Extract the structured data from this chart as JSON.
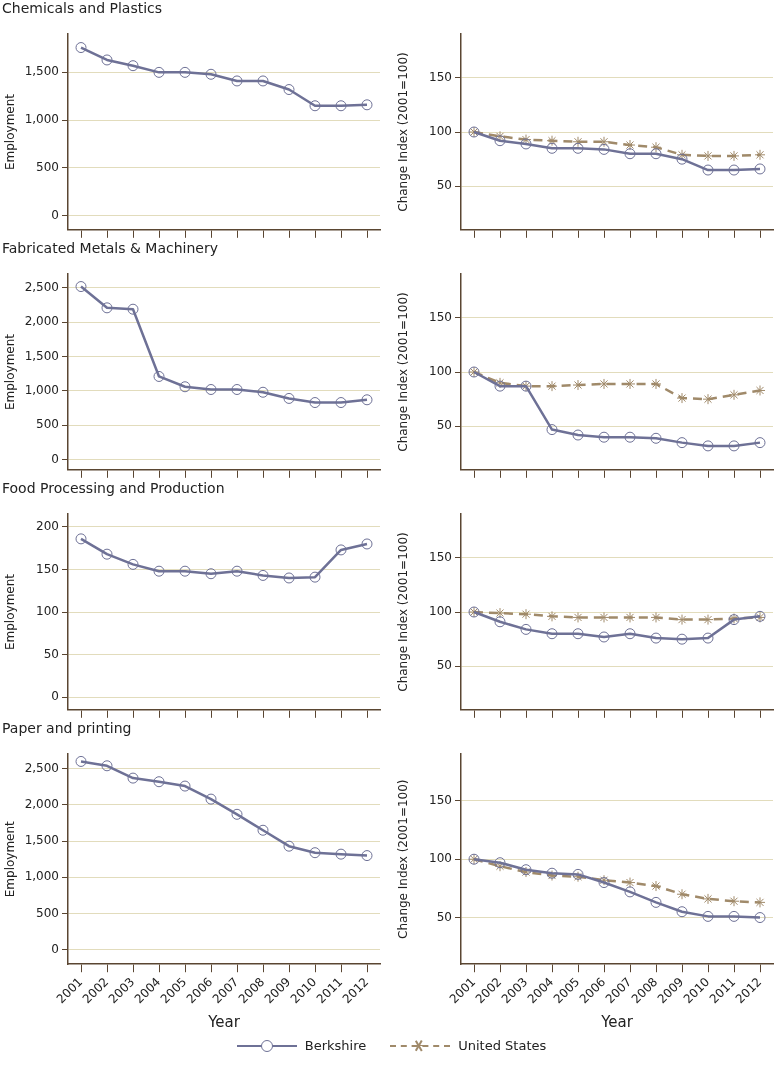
{
  "chart_data": [
    {
      "type": "line",
      "title": "Chemicals and Plastics",
      "ylabel": "Employment",
      "categories": [
        "2001",
        "2002",
        "2003",
        "2004",
        "2005",
        "2006",
        "2007",
        "2008",
        "2009",
        "2010",
        "2011",
        "2012"
      ],
      "ylim": [
        -150,
        1900
      ],
      "yticks": [
        0,
        {
          "value": 500,
          "label": "500"
        },
        {
          "value": 1000,
          "label": "1,000"
        },
        {
          "value": 1500,
          "label": "1,500"
        }
      ],
      "grid": "y",
      "tick_labels": "y",
      "marker": "circle",
      "line_style": "solid",
      "series": [
        {
          "color": "#6e7196",
          "values": [
            1760,
            1630,
            1570,
            1500,
            1500,
            1480,
            1410,
            1410,
            1320,
            1150,
            1150,
            1160
          ]
        }
      ]
    },
    {
      "type": "line",
      "ylabel": "Change Index (2001=100)",
      "categories": [
        "2001",
        "2002",
        "2003",
        "2004",
        "2005",
        "2006",
        "2007",
        "2008",
        "2009",
        "2010",
        "2011",
        "2012"
      ],
      "ylim": [
        10,
        190
      ],
      "yticks": [
        50,
        100,
        150
      ],
      "grid": "y",
      "tick_labels": "y",
      "marker": "circle",
      "line_style": "solid",
      "series": [
        {
          "color": "#6e7196",
          "values": [
            100,
            92,
            89,
            85,
            85,
            84,
            80,
            80,
            75,
            65,
            65,
            66
          ]
        },
        {
          "color": "#a08a6a",
          "marker": "cross",
          "line_style": "dashed",
          "values": [
            100,
            96,
            93,
            92,
            91,
            91,
            88,
            86,
            79,
            78,
            78,
            79
          ]
        }
      ]
    },
    {
      "type": "line",
      "title": "Fabricated Metals & Machinery",
      "ylabel": "Employment",
      "categories": [
        "2001",
        "2002",
        "2003",
        "2004",
        "2005",
        "2006",
        "2007",
        "2008",
        "2009",
        "2010",
        "2011",
        "2012"
      ],
      "ylim": [
        -150,
        2700
      ],
      "yticks": [
        0,
        {
          "value": 500,
          "label": "500"
        },
        {
          "value": 1000,
          "label": "1,000"
        },
        {
          "value": 1500,
          "label": "1,500"
        },
        {
          "value": 2000,
          "label": "2,000"
        },
        {
          "value": 2500,
          "label": "2,500"
        }
      ],
      "grid": "y",
      "tick_labels": "y",
      "marker": "circle",
      "line_style": "solid",
      "series": [
        {
          "color": "#6e7196",
          "values": [
            2520,
            2210,
            2190,
            1210,
            1060,
            1020,
            1020,
            980,
            890,
            830,
            830,
            870
          ]
        }
      ]
    },
    {
      "type": "line",
      "ylabel": "Change Index (2001=100)",
      "categories": [
        "2001",
        "2002",
        "2003",
        "2004",
        "2005",
        "2006",
        "2007",
        "2008",
        "2009",
        "2010",
        "2011",
        "2012"
      ],
      "ylim": [
        10,
        190
      ],
      "yticks": [
        50,
        100,
        150
      ],
      "grid": "y",
      "tick_labels": "y",
      "marker": "circle",
      "line_style": "solid",
      "series": [
        {
          "color": "#6e7196",
          "values": [
            100,
            87,
            87,
            47,
            42,
            40,
            40,
            39,
            35,
            32,
            32,
            35
          ]
        },
        {
          "color": "#a08a6a",
          "marker": "cross",
          "line_style": "dashed",
          "values": [
            100,
            90,
            87,
            87,
            88,
            89,
            89,
            89,
            76,
            75,
            79,
            83
          ]
        }
      ]
    },
    {
      "type": "line",
      "title": "Food Processing and Production",
      "ylabel": "Employment",
      "categories": [
        "2001",
        "2002",
        "2003",
        "2004",
        "2005",
        "2006",
        "2007",
        "2008",
        "2009",
        "2010",
        "2011",
        "2012"
      ],
      "ylim": [
        -15,
        215
      ],
      "yticks": [
        0,
        50,
        100,
        150,
        200
      ],
      "grid": "y",
      "tick_labels": "y",
      "marker": "circle",
      "line_style": "solid",
      "series": [
        {
          "color": "#6e7196",
          "values": [
            186,
            168,
            156,
            148,
            148,
            145,
            148,
            143,
            140,
            141,
            173,
            180
          ]
        }
      ]
    },
    {
      "type": "line",
      "ylabel": "Change Index (2001=100)",
      "categories": [
        "2001",
        "2002",
        "2003",
        "2004",
        "2005",
        "2006",
        "2007",
        "2008",
        "2009",
        "2010",
        "2011",
        "2012"
      ],
      "ylim": [
        10,
        190
      ],
      "yticks": [
        50,
        100,
        150
      ],
      "grid": "y",
      "tick_labels": "y",
      "marker": "circle",
      "line_style": "solid",
      "series": [
        {
          "color": "#6e7196",
          "values": [
            100,
            91,
            84,
            80,
            80,
            77,
            80,
            76,
            75,
            76,
            93,
            96
          ]
        },
        {
          "color": "#a08a6a",
          "marker": "cross",
          "line_style": "dashed",
          "values": [
            100,
            99,
            98,
            96,
            95,
            95,
            95,
            95,
            93,
            93,
            94,
            95
          ]
        }
      ]
    },
    {
      "type": "line",
      "title": "Paper and printing",
      "xlabel": "Year",
      "ylabel": "Employment",
      "categories": [
        "2001",
        "2002",
        "2003",
        "2004",
        "2005",
        "2006",
        "2007",
        "2008",
        "2009",
        "2010",
        "2011",
        "2012"
      ],
      "ylim": [
        -200,
        2700
      ],
      "yticks": [
        0,
        {
          "value": 500,
          "label": "500"
        },
        {
          "value": 1000,
          "label": "1,000"
        },
        {
          "value": 1500,
          "label": "1,500"
        },
        {
          "value": 2000,
          "label": "2,000"
        },
        {
          "value": 2500,
          "label": "2,500"
        }
      ],
      "grid": "y",
      "marker": "circle",
      "line_style": "solid",
      "series": [
        {
          "color": "#6e7196",
          "values": [
            2600,
            2540,
            2370,
            2320,
            2260,
            2080,
            1870,
            1650,
            1430,
            1340,
            1320,
            1300
          ]
        }
      ]
    },
    {
      "type": "line",
      "xlabel": "Year",
      "ylabel": "Change Index (2001=100)",
      "categories": [
        "2001",
        "2002",
        "2003",
        "2004",
        "2005",
        "2006",
        "2007",
        "2008",
        "2009",
        "2010",
        "2011",
        "2012"
      ],
      "ylim": [
        10,
        190
      ],
      "yticks": [
        50,
        100,
        150
      ],
      "grid": "y",
      "legend": "bottom",
      "marker": "circle",
      "line_style": "solid",
      "series": [
        {
          "name": "Berkshire",
          "color": "#6e7196",
          "values": [
            100,
            97,
            91,
            88,
            87,
            80,
            72,
            63,
            55,
            51,
            51,
            50
          ]
        },
        {
          "name": "United States",
          "color": "#a08a6a",
          "marker": "cross",
          "line_style": "dashed",
          "values": [
            100,
            94,
            89,
            86,
            85,
            82,
            80,
            77,
            70,
            66,
            64,
            63
          ]
        }
      ]
    }
  ]
}
